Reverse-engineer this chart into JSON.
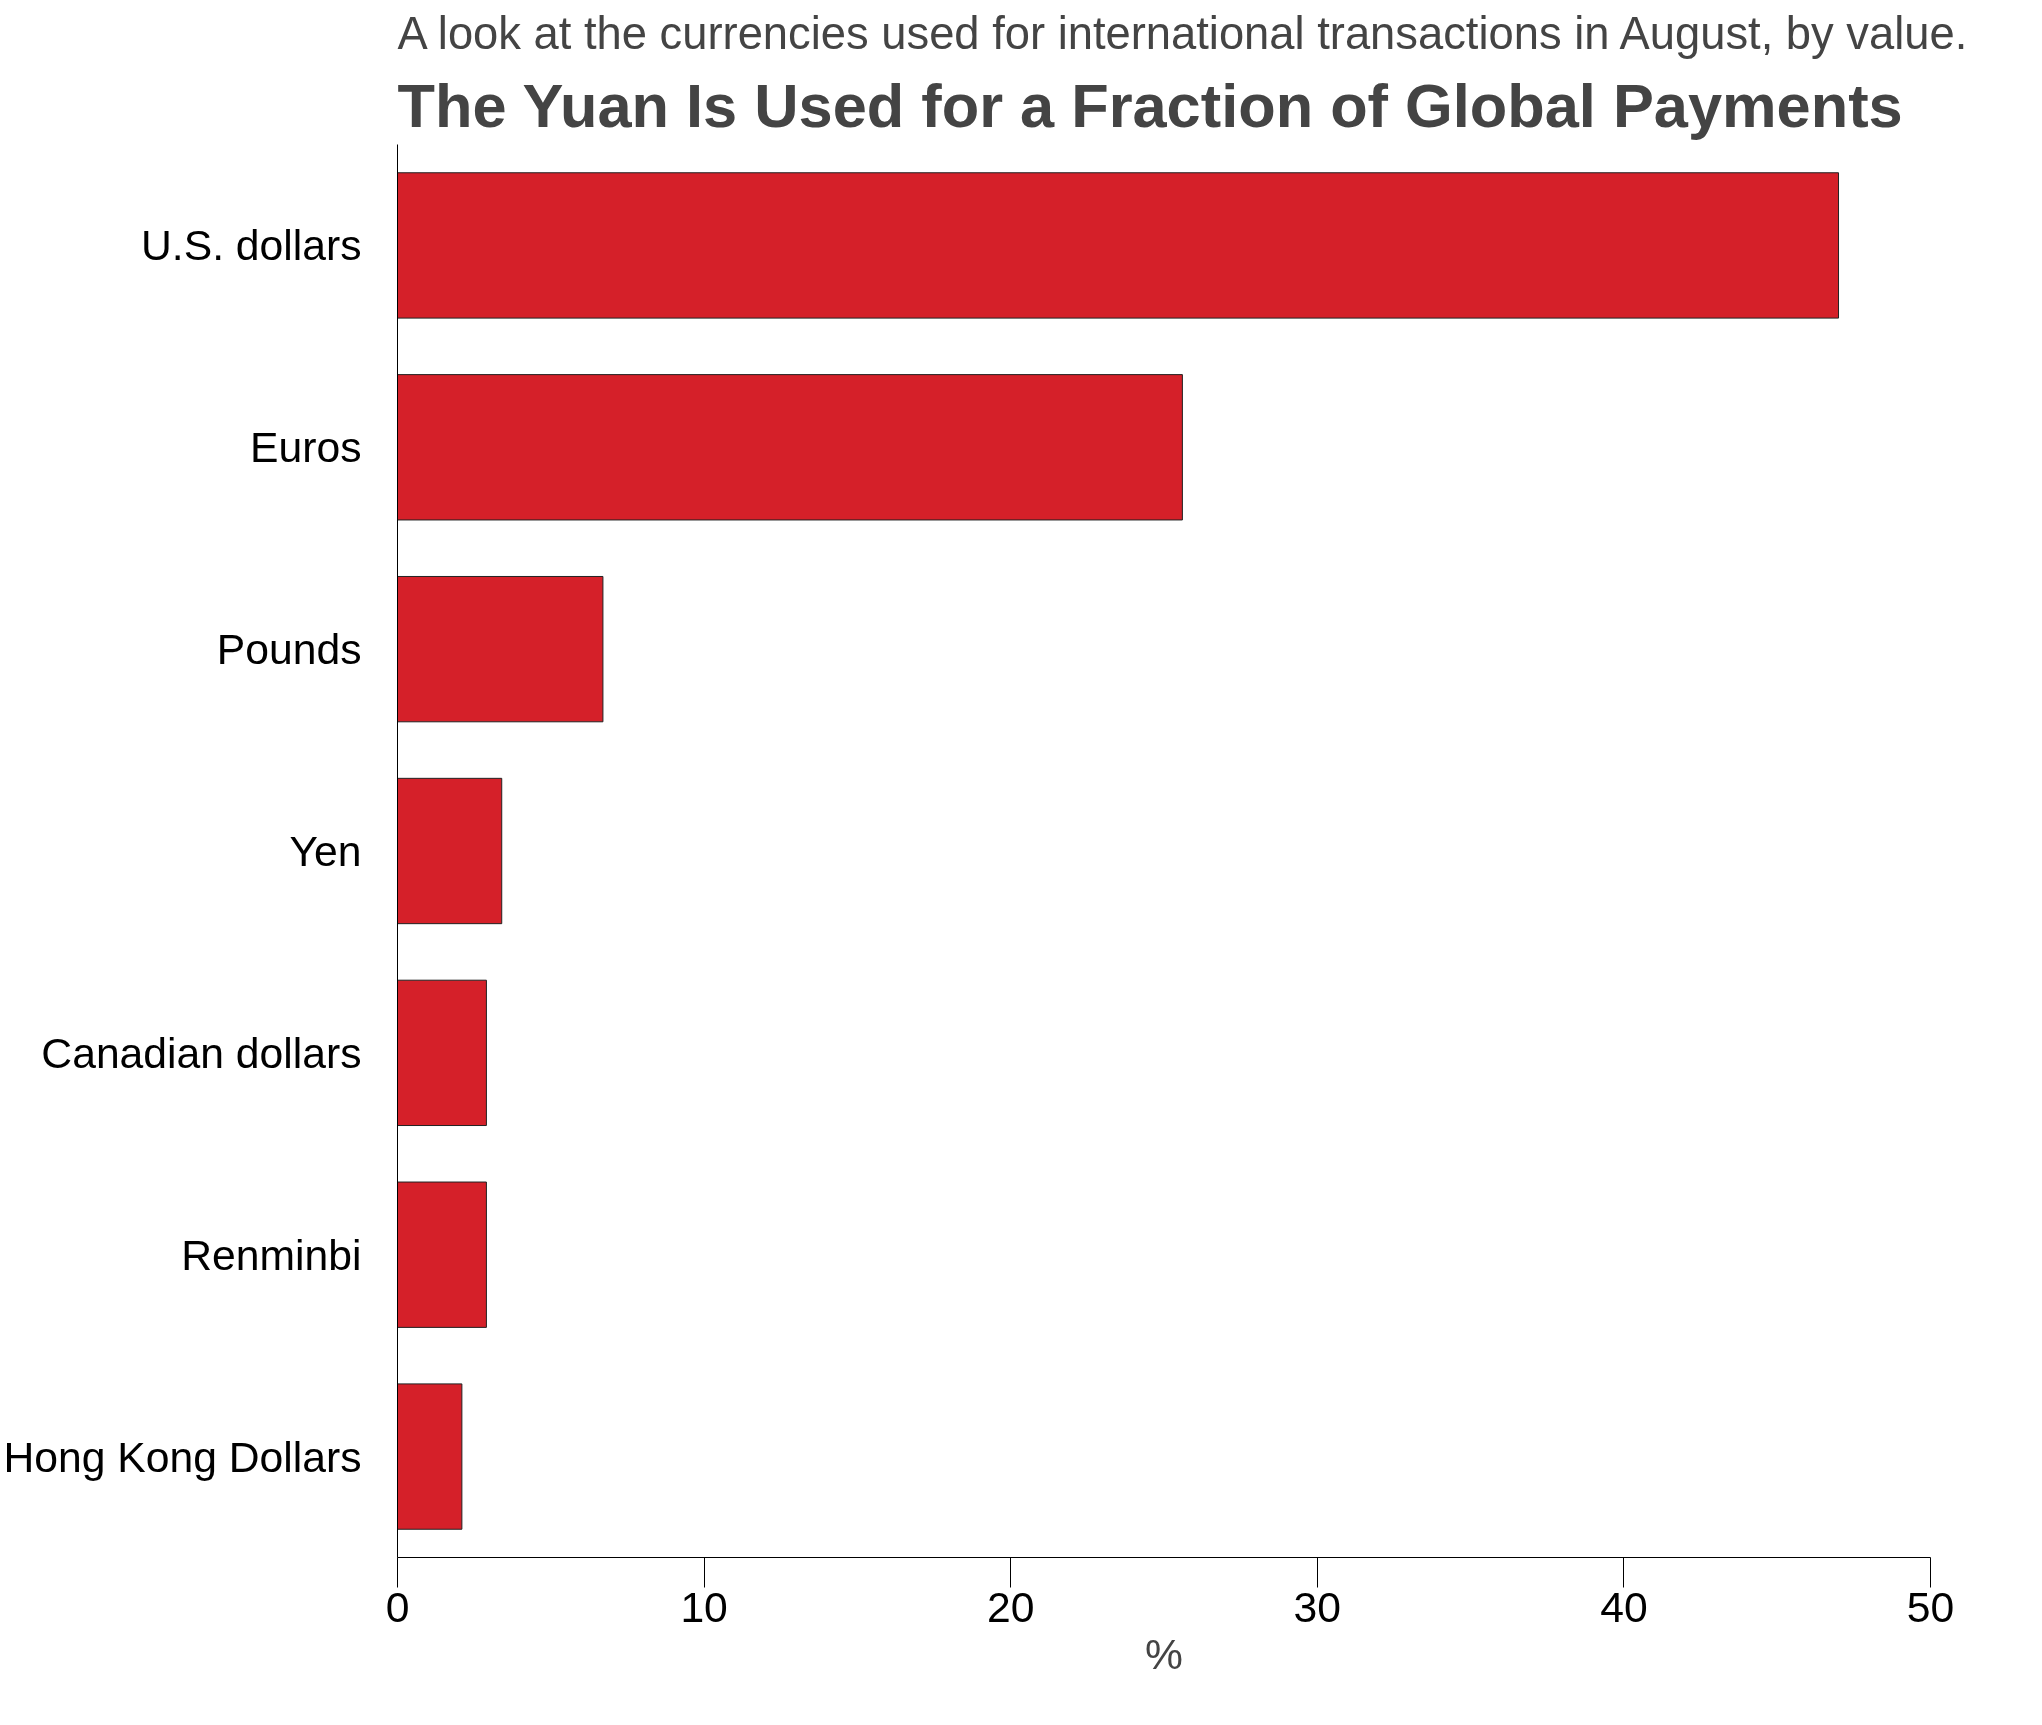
{
  "chart_data": {
    "type": "bar",
    "orientation": "horizontal",
    "title": "The Yuan Is Used for a Fraction of Global Payments",
    "subtitle": "A look at the currencies used for international transactions in August, by value.",
    "xlabel": "%",
    "categories": [
      "U.S. dollars",
      "Euros",
      "Pounds",
      "Yen",
      "Canadian dollars",
      "Renminbi",
      "Hong Kong Dollars"
    ],
    "values": [
      47.0,
      25.6,
      6.7,
      3.4,
      2.9,
      2.9,
      2.1
    ],
    "color": "#d52029",
    "xlim": [
      0,
      50
    ],
    "xticks": [
      0,
      10,
      20,
      30,
      40,
      50
    ],
    "grid": false
  }
}
